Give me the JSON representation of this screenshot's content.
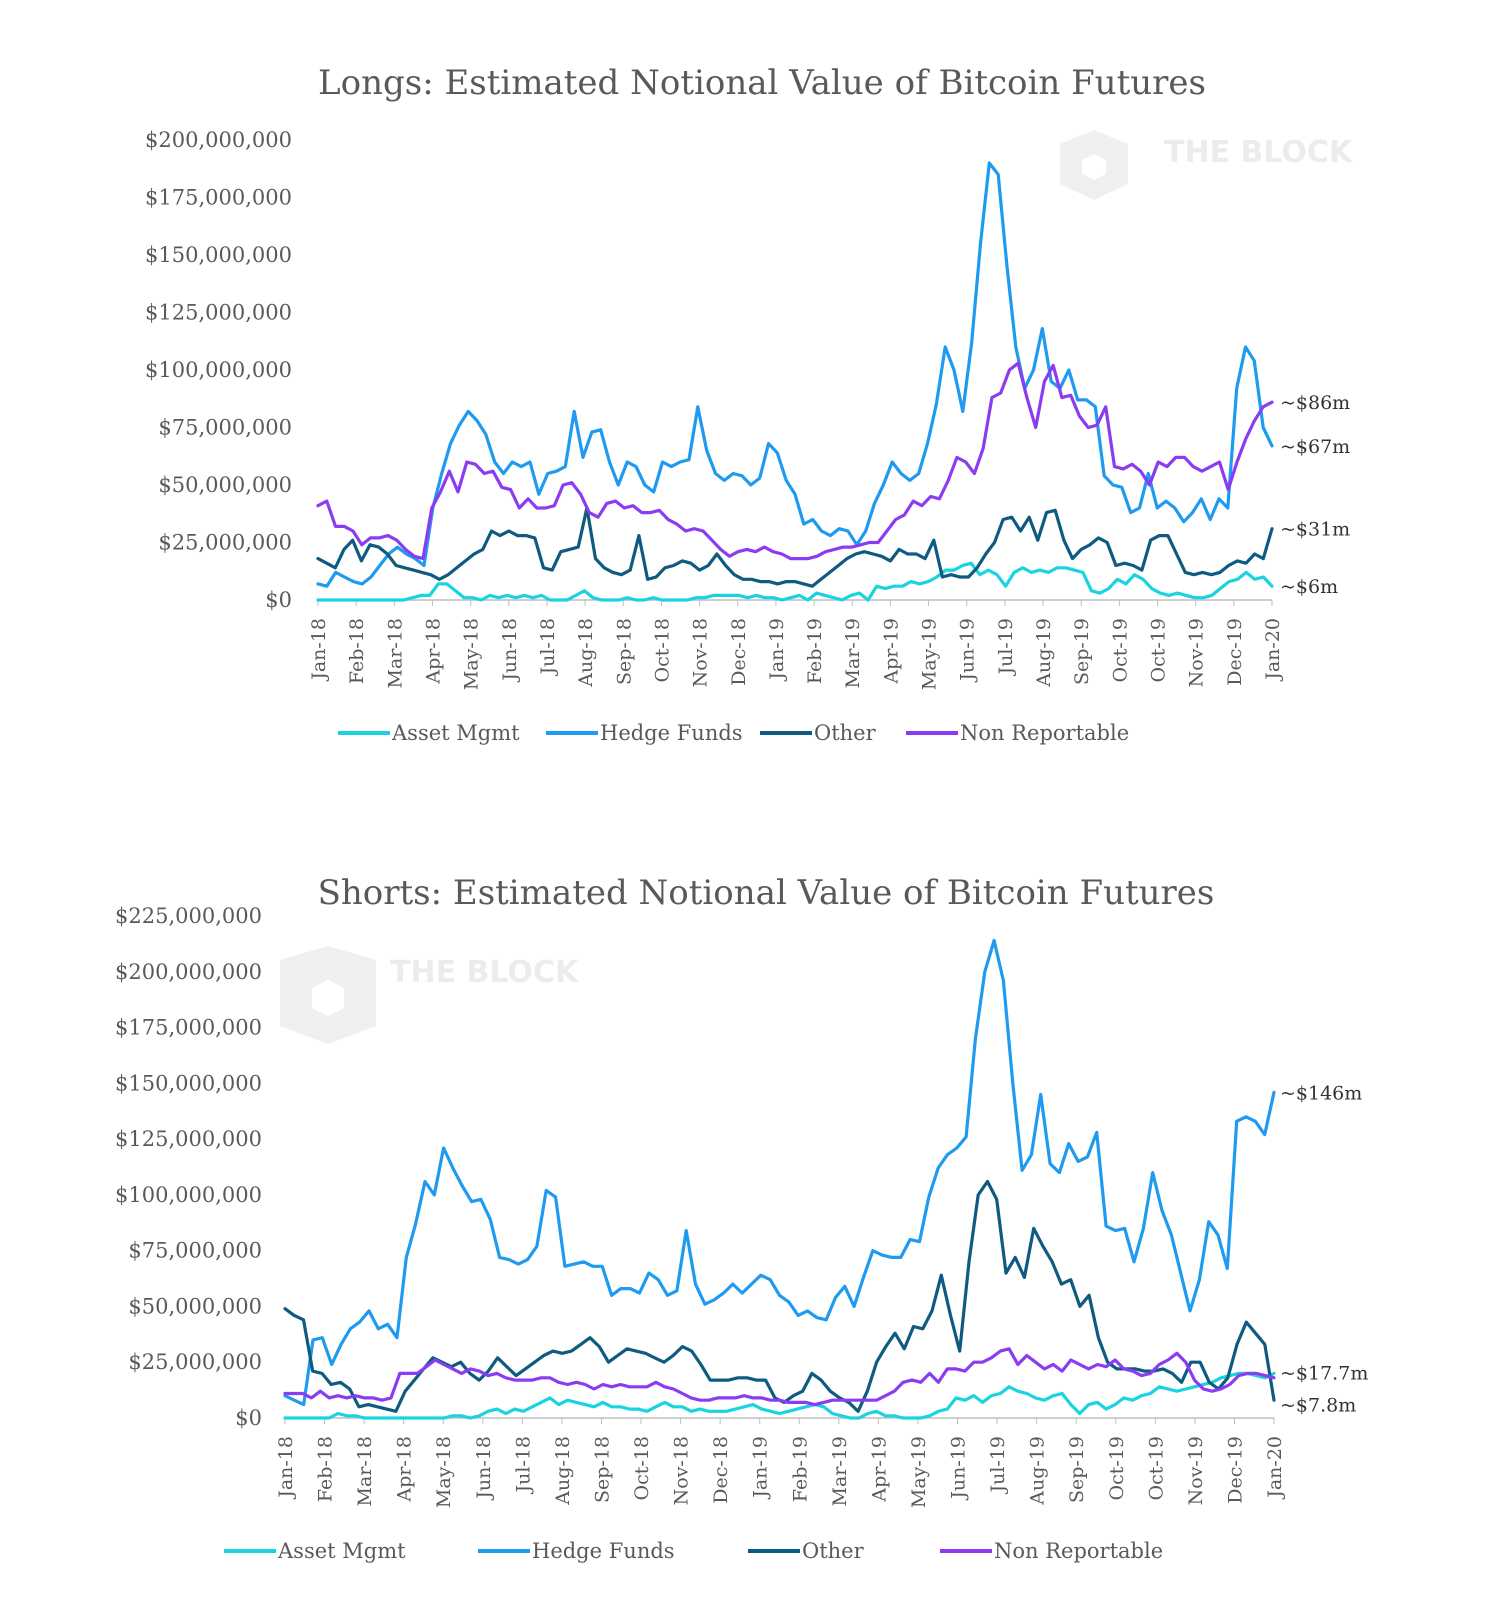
{
  "watermark": "THE BLOCK",
  "colors": {
    "Asset Mgmt": "#19d3e0",
    "Hedge Funds": "#1e9af0",
    "Other": "#0e5a80",
    "Non Reportable": "#8b3cf2"
  },
  "chart_data": [
    {
      "type": "line",
      "title": "Longs: Estimated Notional Value of Bitcoin Futures",
      "ylim": [
        0,
        200000000
      ],
      "y_ticks": [
        "$200,000,000",
        "$175,000,000",
        "$150,000,000",
        "$125,000,000",
        "$100,000,000",
        "$75,000,000",
        "$50,000,000",
        "$25,000,000",
        "$0"
      ],
      "x_ticks": [
        "Jan-18",
        "Feb-18",
        "Mar-18",
        "Apr-18",
        "May-18",
        "Jun-18",
        "Jul-18",
        "Aug-18",
        "Sep-18",
        "Oct-18",
        "Nov-18",
        "Dec-18",
        "Jan-19",
        "Feb-19",
        "Mar-19",
        "Apr-19",
        "May-19",
        "Jun-19",
        "Jul-19",
        "Aug-19",
        "Sep-19",
        "Oct-19",
        "Oct-19",
        "Nov-19",
        "Dec-19",
        "Jan-20"
      ],
      "legend": "bottom",
      "series": [
        {
          "name": "Asset Mgmt",
          "values": [
            0,
            0,
            0,
            0,
            0,
            0,
            0,
            0,
            0,
            0,
            0,
            1,
            2,
            2,
            7,
            7,
            4,
            1,
            1,
            0,
            2,
            1,
            2,
            1,
            2,
            1,
            2,
            0,
            0,
            0,
            2,
            4,
            1,
            0,
            0,
            0,
            1,
            0,
            0,
            1,
            0,
            0,
            0,
            0,
            1,
            1,
            2,
            2,
            2,
            2,
            1,
            2,
            1,
            1,
            0,
            1,
            2,
            0,
            3,
            2,
            1,
            0,
            2,
            3,
            0,
            6,
            5,
            6,
            6,
            8,
            7,
            8,
            10,
            13,
            13,
            15,
            16,
            11,
            13,
            11,
            6,
            12,
            14,
            12,
            13,
            12,
            14,
            14,
            13,
            12,
            4,
            3,
            5,
            9,
            7,
            11,
            9,
            5,
            3,
            2,
            3,
            2,
            1,
            1,
            2,
            5,
            8,
            9,
            12,
            9,
            10,
            6
          ]
        },
        {
          "name": "Hedge Funds",
          "values": [
            7,
            6,
            12,
            10,
            8,
            7,
            10,
            15,
            20,
            23,
            20,
            18,
            15,
            40,
            55,
            68,
            76,
            82,
            78,
            72,
            60,
            55,
            60,
            58,
            60,
            46,
            55,
            56,
            58,
            82,
            62,
            73,
            74,
            60,
            50,
            60,
            58,
            50,
            47,
            60,
            58,
            60,
            61,
            84,
            65,
            55,
            52,
            55,
            54,
            50,
            53,
            68,
            64,
            52,
            46,
            33,
            35,
            30,
            28,
            31,
            30,
            24,
            30,
            42,
            50,
            60,
            55,
            52,
            55,
            68,
            85,
            110,
            100,
            82,
            112,
            155,
            190,
            185,
            145,
            110,
            92,
            100,
            118,
            95,
            92,
            100,
            87,
            87,
            84,
            54,
            50,
            49,
            38,
            40,
            55,
            40,
            43,
            40,
            34,
            38,
            44,
            35,
            44,
            40,
            92,
            110,
            104,
            75,
            67
          ]
        },
        {
          "name": "Other",
          "values": [
            18,
            16,
            14,
            22,
            26,
            17,
            24,
            23,
            20,
            15,
            14,
            13,
            12,
            11,
            9,
            11,
            14,
            17,
            20,
            22,
            30,
            28,
            30,
            28,
            28,
            27,
            14,
            13,
            21,
            22,
            23,
            40,
            18,
            14,
            12,
            11,
            13,
            28,
            9,
            10,
            14,
            15,
            17,
            16,
            13,
            15,
            20,
            15,
            11,
            9,
            9,
            8,
            8,
            7,
            8,
            8,
            7,
            6,
            9,
            12,
            15,
            18,
            20,
            21,
            20,
            19,
            17,
            22,
            20,
            20,
            18,
            26,
            10,
            11,
            10,
            10,
            14,
            20,
            25,
            35,
            36,
            30,
            36,
            26,
            38,
            39,
            26,
            18,
            22,
            24,
            27,
            25,
            15,
            16,
            15,
            13,
            26,
            28,
            28,
            20,
            12,
            11,
            12,
            11,
            12,
            15,
            17,
            16,
            20,
            18,
            31
          ]
        },
        {
          "name": "Non Reportable",
          "values": [
            41,
            43,
            32,
            32,
            30,
            24,
            27,
            27,
            28,
            26,
            22,
            19,
            18,
            40,
            47,
            56,
            47,
            60,
            59,
            55,
            56,
            49,
            48,
            40,
            44,
            40,
            40,
            41,
            50,
            51,
            46,
            38,
            36,
            42,
            43,
            40,
            41,
            38,
            38,
            39,
            35,
            33,
            30,
            31,
            30,
            26,
            22,
            19,
            21,
            22,
            21,
            23,
            21,
            20,
            18,
            18,
            18,
            19,
            21,
            22,
            23,
            23,
            24,
            25,
            25,
            30,
            35,
            37,
            43,
            41,
            45,
            44,
            52,
            62,
            60,
            55,
            66,
            88,
            90,
            100,
            103,
            88,
            75,
            95,
            102,
            88,
            89,
            80,
            75,
            76,
            84,
            58,
            57,
            59,
            56,
            50,
            60,
            58,
            62,
            62,
            58,
            56,
            58,
            60,
            48,
            60,
            70,
            78,
            84,
            86
          ]
        }
      ],
      "annotations": [
        "~$86m",
        "~$67m",
        "~$31m",
        "~$6m"
      ]
    },
    {
      "type": "line",
      "title": "Shorts: Estimated Notional Value of Bitcoin Futures",
      "ylim": [
        0,
        225000000
      ],
      "y_ticks": [
        "$225,000,000",
        "$200,000,000",
        "$175,000,000",
        "$150,000,000",
        "$125,000,000",
        "$100,000,000",
        "$75,000,000",
        "$50,000,000",
        "$25,000,000",
        "$0"
      ],
      "x_ticks": [
        "Jan-18",
        "Feb-18",
        "Mar-18",
        "Apr-18",
        "May-18",
        "Jun-18",
        "Jul-18",
        "Aug-18",
        "Sep-18",
        "Oct-18",
        "Nov-18",
        "Dec-18",
        "Jan-19",
        "Feb-19",
        "Mar-19",
        "Apr-19",
        "May-19",
        "Jun-19",
        "Jul-19",
        "Aug-19",
        "Sep-19",
        "Oct-19",
        "Oct-19",
        "Nov-19",
        "Dec-19",
        "Jan-20"
      ],
      "legend": "bottom",
      "series": [
        {
          "name": "Asset Mgmt",
          "values": [
            0,
            0,
            0,
            0,
            0,
            0,
            2,
            1,
            1,
            0,
            0,
            0,
            0,
            0,
            0,
            0,
            0,
            0,
            0,
            1,
            1,
            0,
            1,
            3,
            4,
            2,
            4,
            3,
            5,
            7,
            9,
            6,
            8,
            7,
            6,
            5,
            7,
            5,
            5,
            4,
            4,
            3,
            5,
            7,
            5,
            5,
            3,
            4,
            3,
            3,
            3,
            4,
            5,
            6,
            4,
            3,
            2,
            3,
            4,
            5,
            6,
            5,
            2,
            1,
            0,
            0,
            2,
            3,
            1,
            1,
            0,
            0,
            0,
            1,
            3,
            4,
            9,
            8,
            10,
            7,
            10,
            11,
            14,
            12,
            11,
            9,
            8,
            10,
            11,
            6,
            2,
            6,
            7,
            4,
            6,
            9,
            8,
            10,
            11,
            14,
            13,
            12,
            13,
            14,
            15,
            16,
            18,
            19,
            20,
            20,
            19,
            18,
            20
          ]
        },
        {
          "name": "Hedge Funds",
          "values": [
            10,
            8,
            6,
            35,
            36,
            24,
            33,
            40,
            43,
            48,
            40,
            42,
            36,
            72,
            87,
            106,
            100,
            121,
            112,
            104,
            97,
            98,
            89,
            72,
            71,
            69,
            71,
            77,
            102,
            99,
            68,
            69,
            70,
            68,
            68,
            55,
            58,
            58,
            56,
            65,
            62,
            55,
            57,
            84,
            60,
            51,
            53,
            56,
            60,
            56,
            60,
            64,
            62,
            55,
            52,
            46,
            48,
            45,
            44,
            54,
            59,
            50,
            63,
            75,
            73,
            72,
            72,
            80,
            79,
            99,
            112,
            118,
            121,
            126,
            170,
            200,
            214,
            196,
            150,
            111,
            118,
            145,
            114,
            110,
            123,
            115,
            117,
            128,
            86,
            84,
            85,
            70,
            85,
            110,
            93,
            82,
            65,
            48,
            62,
            88,
            82,
            67,
            133,
            135,
            133,
            127,
            146
          ]
        },
        {
          "name": "Other",
          "values": [
            49,
            46,
            44,
            21,
            20,
            15,
            16,
            13,
            5,
            6,
            5,
            4,
            3,
            12,
            17,
            22,
            27,
            25,
            23,
            25,
            20,
            17,
            21,
            27,
            23,
            19,
            22,
            25,
            28,
            30,
            29,
            30,
            33,
            36,
            32,
            25,
            28,
            31,
            30,
            29,
            27,
            25,
            28,
            32,
            30,
            24,
            17,
            17,
            17,
            18,
            18,
            17,
            17,
            9,
            7,
            10,
            12,
            20,
            17,
            12,
            9,
            7,
            3,
            12,
            25,
            32,
            38,
            31,
            41,
            40,
            48,
            64,
            46,
            30,
            70,
            100,
            106,
            98,
            65,
            72,
            63,
            85,
            77,
            70,
            60,
            62,
            50,
            55,
            36,
            25,
            22,
            22,
            22,
            21,
            21,
            22,
            20,
            16,
            25,
            25,
            16,
            13,
            18,
            33,
            43,
            38,
            33,
            8
          ]
        },
        {
          "name": "Non Reportable",
          "values": [
            11,
            11,
            11,
            9,
            12,
            9,
            10,
            9,
            10,
            9,
            9,
            8,
            9,
            20,
            20,
            20,
            23,
            26,
            24,
            22,
            20,
            22,
            21,
            19,
            20,
            18,
            17,
            17,
            17,
            18,
            18,
            16,
            15,
            16,
            15,
            13,
            15,
            14,
            15,
            14,
            14,
            14,
            16,
            14,
            13,
            11,
            9,
            8,
            8,
            9,
            9,
            9,
            10,
            9,
            9,
            8,
            8,
            7,
            7,
            7,
            6,
            7,
            8,
            8,
            8,
            8,
            8,
            8,
            10,
            12,
            16,
            17,
            16,
            20,
            16,
            22,
            22,
            21,
            25,
            25,
            27,
            30,
            31,
            24,
            28,
            25,
            22,
            24,
            21,
            26,
            24,
            22,
            24,
            23,
            26,
            22,
            21,
            19,
            20,
            24,
            26,
            29,
            25,
            17,
            13,
            12,
            13,
            15,
            19,
            20,
            20,
            19,
            18
          ]
        }
      ],
      "annotations": [
        "~$146m",
        "~$17.7m",
        "~$7.8m"
      ]
    }
  ]
}
